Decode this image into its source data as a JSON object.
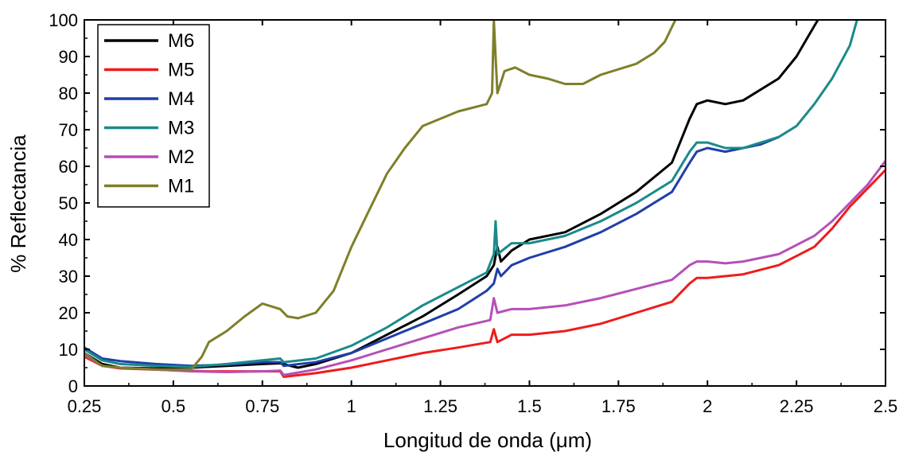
{
  "chart_data": {
    "type": "line",
    "xlabel": "Longitud de onda (μm)",
    "ylabel": "% Reflectancia",
    "xlim": [
      0.25,
      2.5
    ],
    "ylim": [
      0,
      100
    ],
    "x_ticks": [
      "0.25",
      "0.5",
      "0.75",
      "1",
      "1.25",
      "1.5",
      "1.75",
      "2",
      "2.25",
      "2.5"
    ],
    "y_ticks": [
      "0",
      "10",
      "20",
      "30",
      "40",
      "50",
      "60",
      "70",
      "80",
      "90",
      "100"
    ],
    "grid": false,
    "legend_position": "top-left",
    "series": [
      {
        "name": "M6",
        "color": "#000000",
        "points": [
          [
            0.25,
            9
          ],
          [
            0.3,
            6
          ],
          [
            0.35,
            5
          ],
          [
            0.45,
            4.8
          ],
          [
            0.55,
            5
          ],
          [
            0.65,
            5.5
          ],
          [
            0.75,
            6
          ],
          [
            0.8,
            6.2
          ],
          [
            0.85,
            5
          ],
          [
            0.9,
            6
          ],
          [
            1.0,
            9
          ],
          [
            1.1,
            14
          ],
          [
            1.2,
            19
          ],
          [
            1.3,
            25
          ],
          [
            1.38,
            30
          ],
          [
            1.4,
            33
          ],
          [
            1.41,
            38
          ],
          [
            1.42,
            34
          ],
          [
            1.45,
            37
          ],
          [
            1.5,
            40
          ],
          [
            1.6,
            42
          ],
          [
            1.7,
            47
          ],
          [
            1.8,
            53
          ],
          [
            1.9,
            61
          ],
          [
            1.95,
            73
          ],
          [
            1.97,
            77
          ],
          [
            2.0,
            78
          ],
          [
            2.05,
            77
          ],
          [
            2.1,
            78
          ],
          [
            2.2,
            84
          ],
          [
            2.25,
            90
          ],
          [
            2.28,
            95
          ],
          [
            2.31,
            100
          ]
        ]
      },
      {
        "name": "M5",
        "color": "#ee1c1c",
        "points": [
          [
            0.25,
            8
          ],
          [
            0.3,
            5.5
          ],
          [
            0.35,
            4.8
          ],
          [
            0.5,
            4.3
          ],
          [
            0.6,
            4
          ],
          [
            0.7,
            4
          ],
          [
            0.8,
            4
          ],
          [
            0.81,
            2.5
          ],
          [
            0.9,
            3.5
          ],
          [
            1.0,
            5
          ],
          [
            1.1,
            7
          ],
          [
            1.2,
            9
          ],
          [
            1.3,
            10.5
          ],
          [
            1.39,
            12
          ],
          [
            1.4,
            15.5
          ],
          [
            1.41,
            12
          ],
          [
            1.45,
            14
          ],
          [
            1.5,
            14
          ],
          [
            1.6,
            15
          ],
          [
            1.7,
            17
          ],
          [
            1.8,
            20
          ],
          [
            1.9,
            23
          ],
          [
            1.95,
            28
          ],
          [
            1.97,
            29.5
          ],
          [
            2.0,
            29.5
          ],
          [
            2.1,
            30.5
          ],
          [
            2.2,
            33
          ],
          [
            2.3,
            38
          ],
          [
            2.35,
            43
          ],
          [
            2.4,
            49
          ],
          [
            2.45,
            54
          ],
          [
            2.5,
            59
          ]
        ]
      },
      {
        "name": "M4",
        "color": "#1f3fa8",
        "points": [
          [
            0.25,
            10.5
          ],
          [
            0.3,
            7.5
          ],
          [
            0.35,
            6.8
          ],
          [
            0.45,
            6
          ],
          [
            0.55,
            5.5
          ],
          [
            0.65,
            5.8
          ],
          [
            0.75,
            6.5
          ],
          [
            0.8,
            6.5
          ],
          [
            0.81,
            5.5
          ],
          [
            0.9,
            6.5
          ],
          [
            1.0,
            9
          ],
          [
            1.1,
            13
          ],
          [
            1.2,
            17
          ],
          [
            1.3,
            21
          ],
          [
            1.38,
            26
          ],
          [
            1.4,
            28
          ],
          [
            1.41,
            32
          ],
          [
            1.42,
            30
          ],
          [
            1.45,
            33
          ],
          [
            1.5,
            35
          ],
          [
            1.6,
            38
          ],
          [
            1.7,
            42
          ],
          [
            1.8,
            47
          ],
          [
            1.9,
            53
          ],
          [
            1.95,
            61
          ],
          [
            1.97,
            64
          ],
          [
            2.0,
            65
          ],
          [
            2.05,
            64
          ],
          [
            2.1,
            65
          ],
          [
            2.15,
            66
          ],
          [
            2.2,
            68
          ]
        ]
      },
      {
        "name": "M3",
        "color": "#1a8a8a",
        "points": [
          [
            0.25,
            10
          ],
          [
            0.3,
            7
          ],
          [
            0.35,
            6
          ],
          [
            0.45,
            5.5
          ],
          [
            0.55,
            5.2
          ],
          [
            0.65,
            6
          ],
          [
            0.75,
            7
          ],
          [
            0.8,
            7.5
          ],
          [
            0.81,
            6.5
          ],
          [
            0.9,
            7.5
          ],
          [
            1.0,
            11
          ],
          [
            1.1,
            16
          ],
          [
            1.2,
            22
          ],
          [
            1.3,
            27
          ],
          [
            1.38,
            31
          ],
          [
            1.4,
            36
          ],
          [
            1.405,
            45
          ],
          [
            1.41,
            36
          ],
          [
            1.45,
            39
          ],
          [
            1.5,
            39
          ],
          [
            1.6,
            41
          ],
          [
            1.7,
            45
          ],
          [
            1.8,
            50
          ],
          [
            1.9,
            56
          ],
          [
            1.95,
            64
          ],
          [
            1.97,
            66.5
          ],
          [
            2.0,
            66.5
          ],
          [
            2.05,
            65
          ],
          [
            2.1,
            65
          ],
          [
            2.2,
            68
          ],
          [
            2.25,
            71
          ],
          [
            2.3,
            77
          ],
          [
            2.35,
            84
          ],
          [
            2.4,
            93
          ],
          [
            2.42,
            100
          ]
        ]
      },
      {
        "name": "M2",
        "color": "#b64fb8",
        "points": [
          [
            0.25,
            8.5
          ],
          [
            0.3,
            5.5
          ],
          [
            0.35,
            5
          ],
          [
            0.45,
            4.5
          ],
          [
            0.55,
            4
          ],
          [
            0.65,
            3.8
          ],
          [
            0.75,
            4
          ],
          [
            0.8,
            4.2
          ],
          [
            0.81,
            3
          ],
          [
            0.9,
            4.5
          ],
          [
            1.0,
            7
          ],
          [
            1.1,
            10
          ],
          [
            1.2,
            13
          ],
          [
            1.3,
            16
          ],
          [
            1.39,
            18
          ],
          [
            1.4,
            24
          ],
          [
            1.41,
            20
          ],
          [
            1.45,
            21
          ],
          [
            1.5,
            21
          ],
          [
            1.6,
            22
          ],
          [
            1.7,
            24
          ],
          [
            1.8,
            26.5
          ],
          [
            1.9,
            29
          ],
          [
            1.95,
            33
          ],
          [
            1.97,
            34
          ],
          [
            2.0,
            34
          ],
          [
            2.05,
            33.5
          ],
          [
            2.1,
            34
          ],
          [
            2.2,
            36
          ],
          [
            2.3,
            41
          ],
          [
            2.35,
            45
          ],
          [
            2.4,
            50
          ],
          [
            2.45,
            55
          ],
          [
            2.5,
            61.5
          ]
        ]
      },
      {
        "name": "M1",
        "color": "#7f7f2a",
        "points": [
          [
            0.25,
            9
          ],
          [
            0.3,
            5.5
          ],
          [
            0.35,
            5
          ],
          [
            0.45,
            4.5
          ],
          [
            0.55,
            4.5
          ],
          [
            0.58,
            8
          ],
          [
            0.6,
            12
          ],
          [
            0.65,
            15
          ],
          [
            0.7,
            19
          ],
          [
            0.75,
            22.5
          ],
          [
            0.8,
            21
          ],
          [
            0.82,
            19
          ],
          [
            0.85,
            18.5
          ],
          [
            0.9,
            20
          ],
          [
            0.95,
            26
          ],
          [
            1.0,
            38
          ],
          [
            1.05,
            48
          ],
          [
            1.1,
            58
          ],
          [
            1.15,
            65
          ],
          [
            1.2,
            71
          ],
          [
            1.3,
            75
          ],
          [
            1.38,
            77
          ],
          [
            1.395,
            80
          ],
          [
            1.4,
            100
          ],
          [
            1.405,
            90
          ],
          [
            1.41,
            80
          ],
          [
            1.43,
            86
          ],
          [
            1.46,
            87
          ],
          [
            1.5,
            85
          ],
          [
            1.55,
            84
          ],
          [
            1.6,
            82.5
          ],
          [
            1.65,
            82.5
          ],
          [
            1.7,
            85
          ],
          [
            1.8,
            88
          ],
          [
            1.85,
            91
          ],
          [
            1.88,
            94
          ],
          [
            1.91,
            100
          ]
        ]
      }
    ]
  }
}
